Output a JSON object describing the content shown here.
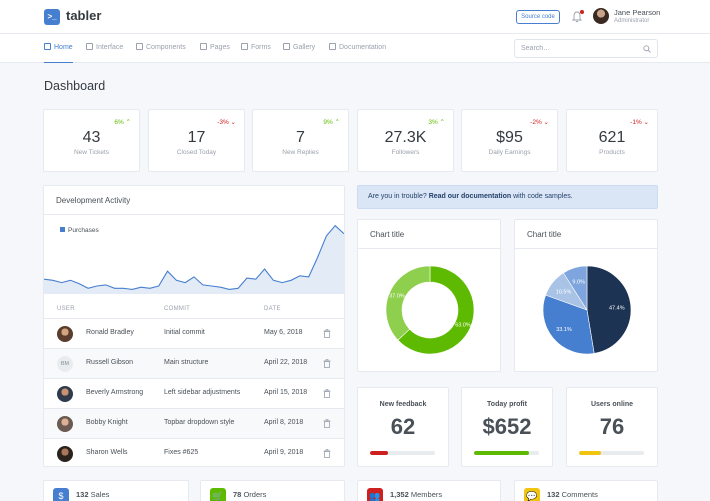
{
  "header": {
    "brand": "tabler",
    "logo_glyph": ">_",
    "source_button": "Source code",
    "user_name": "Jane Pearson",
    "user_role": "Administrator",
    "accent": "#467fcf"
  },
  "nav": {
    "items": [
      {
        "label": "Home",
        "icon": "home-icon",
        "active": true
      },
      {
        "label": "Interface",
        "icon": "box-icon"
      },
      {
        "label": "Components",
        "icon": "calendar-icon"
      },
      {
        "label": "Pages",
        "icon": "file-icon"
      },
      {
        "label": "Forms",
        "icon": "check-square-icon"
      },
      {
        "label": "Gallery",
        "icon": "image-icon"
      },
      {
        "label": "Documentation",
        "icon": "file-text-icon"
      }
    ],
    "search_placeholder": "Search…"
  },
  "page": {
    "title": "Dashboard"
  },
  "stats": [
    {
      "value": "43",
      "label": "New Tickets",
      "change": "6%",
      "dir": "up"
    },
    {
      "value": "17",
      "label": "Closed Today",
      "change": "-3%",
      "dir": "down"
    },
    {
      "value": "7",
      "label": "New Replies",
      "change": "9%",
      "dir": "up"
    },
    {
      "value": "27.3K",
      "label": "Followers",
      "change": "3%",
      "dir": "up"
    },
    {
      "value": "$95",
      "label": "Daily Earnings",
      "change": "-2%",
      "dir": "down"
    },
    {
      "value": "621",
      "label": "Products",
      "change": "-1%",
      "dir": "down"
    }
  ],
  "activity": {
    "title": "Development Activity",
    "table_headers": [
      "USER",
      "COMMIT",
      "DATE"
    ],
    "rows": [
      {
        "user": "Ronald Bradley",
        "commit": "Initial commit",
        "date": "May 6, 2018",
        "avatar": ""
      },
      {
        "user": "Russell Gibson",
        "commit": "Main structure",
        "date": "April 22, 2018",
        "avatar": "BM"
      },
      {
        "user": "Beverly Armstrong",
        "commit": "Left sidebar adjustments",
        "date": "April 15, 2018",
        "avatar": ""
      },
      {
        "user": "Bobby Knight",
        "commit": "Topbar dropdown style",
        "date": "April 8, 2018",
        "avatar": ""
      },
      {
        "user": "Sharon Wells",
        "commit": "Fixes #625",
        "date": "April 9, 2018",
        "avatar": ""
      }
    ]
  },
  "alert": {
    "prefix": "Are you in trouble?",
    "link": "Read our documentation",
    "suffix": "with code samples."
  },
  "chart_data": [
    {
      "type": "area",
      "series": [
        {
          "name": "Purchases",
          "color": "#467fcf",
          "values": [
            13,
            12,
            10,
            12,
            9,
            5,
            7,
            8,
            5,
            5,
            4,
            6,
            5,
            7,
            20,
            12,
            10,
            15,
            8,
            7,
            6,
            4,
            5,
            14,
            13,
            22,
            12,
            10,
            12,
            16,
            15,
            32,
            51,
            60,
            53
          ]
        }
      ]
    },
    {
      "type": "pie",
      "variant": "donut",
      "title": "Chart title",
      "slices": [
        {
          "value": 63.0,
          "label": "63.0%",
          "color": "#5eba00"
        },
        {
          "value": 37.0,
          "label": "37.0%",
          "color": "#8ecf4d"
        }
      ]
    },
    {
      "type": "pie",
      "title": "Chart title",
      "slices": [
        {
          "value": 47.4,
          "label": "47.4%",
          "color": "#1c3353"
        },
        {
          "value": 33.1,
          "label": "33.1%",
          "color": "#467fcf"
        },
        {
          "value": 10.5,
          "label": "10.5%",
          "color": "#a9c3e7"
        },
        {
          "value": 9.0,
          "label": "9.0%",
          "color": "#7ea5dd"
        }
      ]
    }
  ],
  "kpis": [
    {
      "title": "New feedback",
      "value": "62",
      "progress": 0.28,
      "color": "#cd201f"
    },
    {
      "title": "Today profit",
      "value": "$652",
      "progress": 0.84,
      "color": "#5eba00"
    },
    {
      "title": "Users online",
      "value": "76",
      "progress": 0.34,
      "color": "#f1c40f"
    }
  ],
  "mini_stats": [
    {
      "count": "132",
      "label": "Sales",
      "icon": "dollar-icon",
      "glyph": "$",
      "color": "#467fcf"
    },
    {
      "count": "78",
      "label": "Orders",
      "icon": "cart-icon",
      "glyph": "🛒",
      "color": "#5eba00"
    },
    {
      "count": "1,352",
      "label": "Members",
      "icon": "users-icon",
      "glyph": "👥",
      "color": "#cd201f"
    },
    {
      "count": "132",
      "label": "Comments",
      "icon": "message-icon",
      "glyph": "💬",
      "color": "#f1c40f"
    }
  ]
}
